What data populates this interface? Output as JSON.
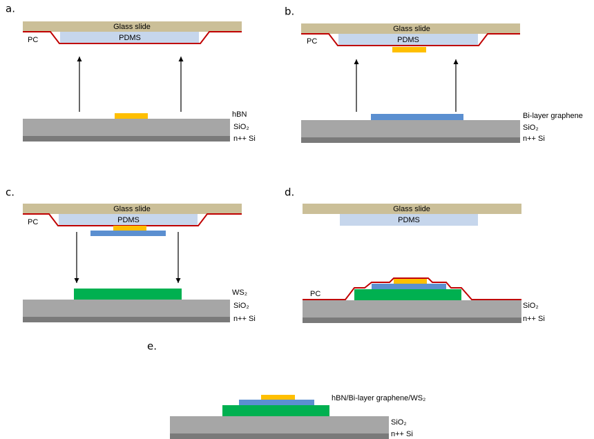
{
  "panels": [
    {
      "label": "a.",
      "slide": "Glass slide",
      "stamp": "PDMS",
      "film": "PC",
      "layer": "hBN",
      "oxide": "SiO₂",
      "substrate": "n++ Si"
    },
    {
      "label": "b.",
      "slide": "Glass slide",
      "stamp": "PDMS",
      "film": "PC",
      "layer": "Bi-layer graphene",
      "oxide": "SiO₂",
      "substrate": "n++ Si"
    },
    {
      "label": "c.",
      "slide": "Glass slide",
      "stamp": "PDMS",
      "film": "PC",
      "layer": "WS₂",
      "oxide": "SiO₂",
      "substrate": "n++ Si"
    },
    {
      "label": "d.",
      "slide": "Glass slide",
      "stamp": "PDMS",
      "film": "PC",
      "oxide": "SiO₂",
      "substrate": "n++ Si"
    },
    {
      "label": "e.",
      "layer": "hBN/Bi-layer graphene/WS₂",
      "oxide": "SiO₂",
      "substrate": "n++ Si"
    }
  ]
}
